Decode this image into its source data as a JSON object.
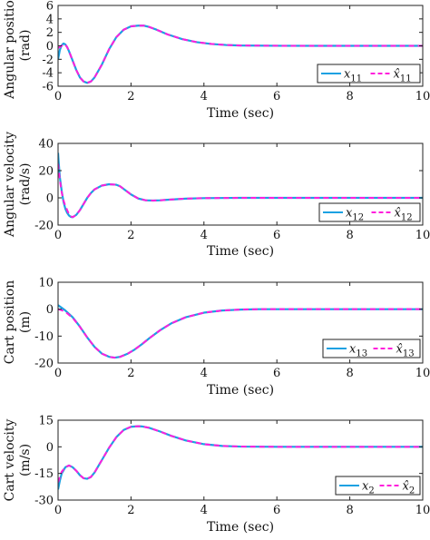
{
  "chart_data": [
    {
      "type": "line",
      "ylabel": [
        "Angular position",
        "(rad)"
      ],
      "xlabel": "Time (sec)",
      "xlim": [
        0,
        10
      ],
      "ylim": [
        -6,
        6
      ],
      "xticks": [
        "0",
        "2",
        "4",
        "6",
        "8",
        "10"
      ],
      "yticks": [
        "-6",
        "-4",
        "-2",
        "0",
        "2",
        "4",
        "6"
      ],
      "grid": false,
      "legend_position": "bottom-right",
      "series": [
        {
          "name": "x11",
          "legend": {
            "base": "x",
            "sub": "11",
            "hat": false
          },
          "color": "#1ba1e2",
          "style": "solid",
          "x": [
            0,
            0.05,
            0.1,
            0.15,
            0.2,
            0.25,
            0.3,
            0.4,
            0.5,
            0.6,
            0.7,
            0.8,
            0.9,
            1.0,
            1.2,
            1.4,
            1.6,
            1.8,
            2.0,
            2.2,
            2.35,
            2.5,
            2.7,
            3.0,
            3.4,
            3.8,
            4.2,
            4.6,
            5.0,
            6.0,
            7.0,
            8.0,
            9.0,
            10.0
          ],
          "y": [
            -2.0,
            -0.6,
            0.1,
            0.35,
            0.2,
            -0.2,
            -0.8,
            -2.2,
            -3.6,
            -4.7,
            -5.3,
            -5.5,
            -5.3,
            -4.7,
            -2.8,
            -0.5,
            1.3,
            2.4,
            2.9,
            3.0,
            3.0,
            2.8,
            2.4,
            1.7,
            1.0,
            0.55,
            0.28,
            0.13,
            0.05,
            0.01,
            0.0,
            0.0,
            0.0,
            0.0
          ]
        },
        {
          "name": "x̂11",
          "legend": {
            "base": "x",
            "sub": "11",
            "hat": true
          },
          "color": "#ff1fdc",
          "style": "dashed",
          "x": [
            0,
            0.05,
            0.1,
            0.15,
            0.2,
            0.25,
            0.3,
            0.4,
            0.5,
            0.6,
            0.7,
            0.8,
            0.9,
            1.0,
            1.2,
            1.4,
            1.6,
            1.8,
            2.0,
            2.2,
            2.35,
            2.5,
            2.7,
            3.0,
            3.4,
            3.8,
            4.2,
            4.6,
            5.0,
            6.0,
            7.0,
            8.0,
            9.0,
            10.0
          ],
          "y": [
            -0.3,
            -0.2,
            0.0,
            0.25,
            0.2,
            -0.2,
            -0.8,
            -2.2,
            -3.6,
            -4.7,
            -5.3,
            -5.5,
            -5.3,
            -4.7,
            -2.8,
            -0.5,
            1.3,
            2.4,
            2.9,
            3.0,
            3.0,
            2.8,
            2.4,
            1.7,
            1.0,
            0.55,
            0.28,
            0.13,
            0.05,
            0.01,
            0.0,
            0.0,
            0.0,
            0.0
          ]
        }
      ]
    },
    {
      "type": "line",
      "ylabel": [
        "Angular velocity",
        "(rad/s)"
      ],
      "xlabel": "Time (sec)",
      "xlim": [
        0,
        10
      ],
      "ylim": [
        -20,
        40
      ],
      "xticks": [
        "0",
        "2",
        "4",
        "6",
        "8",
        "10"
      ],
      "yticks": [
        "-20",
        "0",
        "20",
        "40"
      ],
      "grid": false,
      "legend_position": "bottom-right",
      "series": [
        {
          "name": "x12",
          "legend": {
            "base": "x",
            "sub": "12",
            "hat": false
          },
          "color": "#1ba1e2",
          "style": "solid",
          "x": [
            0,
            0.02,
            0.05,
            0.1,
            0.15,
            0.2,
            0.25,
            0.3,
            0.35,
            0.4,
            0.5,
            0.6,
            0.7,
            0.8,
            0.9,
            1.0,
            1.2,
            1.4,
            1.6,
            1.7,
            1.8,
            2.0,
            2.2,
            2.4,
            2.6,
            2.8,
            3.0,
            3.5,
            4.0,
            5.0,
            6.0,
            7.0,
            8.0,
            9.0,
            10.0
          ],
          "y": [
            33,
            25,
            15,
            5,
            -3,
            -8,
            -11,
            -13,
            -14,
            -14.2,
            -12.5,
            -9,
            -4.5,
            0,
            3.5,
            6.2,
            9,
            10,
            9.6,
            8.5,
            6.5,
            2.5,
            -0.5,
            -1.8,
            -2.0,
            -1.8,
            -1.4,
            -0.6,
            -0.2,
            0,
            0,
            0,
            0,
            0,
            0
          ]
        },
        {
          "name": "x̂12",
          "legend": {
            "base": "x",
            "sub": "12",
            "hat": true
          },
          "color": "#ff1fdc",
          "style": "dashed",
          "x": [
            0,
            0.02,
            0.05,
            0.1,
            0.15,
            0.2,
            0.25,
            0.3,
            0.35,
            0.4,
            0.5,
            0.6,
            0.7,
            0.8,
            0.9,
            1.0,
            1.2,
            1.4,
            1.6,
            1.7,
            1.8,
            2.0,
            2.2,
            2.4,
            2.6,
            2.8,
            3.0,
            3.5,
            4.0,
            5.0,
            6.0,
            7.0,
            8.0,
            9.0,
            10.0
          ],
          "y": [
            25,
            20,
            13,
            4,
            -2,
            -6,
            -9,
            -12,
            -13.5,
            -14.2,
            -12.5,
            -9,
            -4.5,
            0,
            3.5,
            6.2,
            9,
            10,
            9.6,
            8.5,
            6.5,
            2.5,
            -0.5,
            -1.8,
            -2.0,
            -1.8,
            -1.4,
            -0.6,
            -0.2,
            0,
            0,
            0,
            0,
            0,
            0
          ]
        }
      ]
    },
    {
      "type": "line",
      "ylabel": [
        "Cart position",
        "(m)"
      ],
      "xlabel": "Time (sec)",
      "xlim": [
        0,
        10
      ],
      "ylim": [
        -20,
        10
      ],
      "xticks": [
        "0",
        "2",
        "4",
        "6",
        "8",
        "10"
      ],
      "yticks": [
        "-20",
        "-10",
        "0",
        "10"
      ],
      "grid": false,
      "legend_position": "bottom-right",
      "series": [
        {
          "name": "x13",
          "legend": {
            "base": "x",
            "sub": "13",
            "hat": false
          },
          "color": "#1ba1e2",
          "style": "solid",
          "x": [
            0,
            0.1,
            0.2,
            0.4,
            0.6,
            0.8,
            1.0,
            1.2,
            1.4,
            1.55,
            1.7,
            1.9,
            2.1,
            2.3,
            2.5,
            2.8,
            3.1,
            3.5,
            4.0,
            4.5,
            5.0,
            5.5,
            6.0,
            7.0,
            8.0,
            9.0,
            10.0
          ],
          "y": [
            1.5,
            0.5,
            -0.5,
            -3.0,
            -6.5,
            -10.5,
            -14.0,
            -16.5,
            -17.7,
            -18.0,
            -17.7,
            -16.6,
            -15.0,
            -13.0,
            -10.8,
            -7.8,
            -5.3,
            -3.0,
            -1.3,
            -0.5,
            -0.15,
            0,
            0,
            0,
            0,
            0,
            0
          ]
        },
        {
          "name": "x̂13",
          "legend": {
            "base": "x",
            "sub": "13",
            "hat": true
          },
          "color": "#ff1fdc",
          "style": "dashed",
          "x": [
            0,
            0.1,
            0.2,
            0.4,
            0.6,
            0.8,
            1.0,
            1.2,
            1.4,
            1.55,
            1.7,
            1.9,
            2.1,
            2.3,
            2.5,
            2.8,
            3.1,
            3.5,
            4.0,
            4.5,
            5.0,
            5.5,
            6.0,
            7.0,
            8.0,
            9.0,
            10.0
          ],
          "y": [
            0.0,
            -0.4,
            -1.0,
            -3.2,
            -6.6,
            -10.5,
            -14.0,
            -16.5,
            -17.7,
            -18.0,
            -17.7,
            -16.6,
            -15.0,
            -13.0,
            -10.8,
            -7.8,
            -5.3,
            -3.0,
            -1.3,
            -0.5,
            -0.15,
            0,
            0,
            0,
            0,
            0,
            0
          ]
        }
      ]
    },
    {
      "type": "line",
      "ylabel": [
        "Cart velocity",
        "(m/s)"
      ],
      "xlabel": "Time (sec)",
      "xlim": [
        0,
        10
      ],
      "ylim": [
        -30,
        15
      ],
      "xticks": [
        "0",
        "2",
        "4",
        "6",
        "8",
        "10"
      ],
      "yticks": [
        "-30",
        "-15",
        "0",
        "15"
      ],
      "grid": false,
      "legend_position": "bottom-right",
      "series": [
        {
          "name": "x2",
          "legend": {
            "base": "x",
            "sub": "2",
            "hat": false
          },
          "color": "#1ba1e2",
          "style": "solid",
          "x": [
            0,
            0.05,
            0.1,
            0.2,
            0.3,
            0.4,
            0.5,
            0.6,
            0.7,
            0.8,
            0.9,
            1.0,
            1.2,
            1.4,
            1.6,
            1.8,
            2.0,
            2.2,
            2.3,
            2.5,
            2.8,
            3.1,
            3.5,
            4.0,
            4.5,
            5.0,
            6.0,
            7.0,
            8.0,
            9.0,
            10.0
          ],
          "y": [
            -24,
            -19,
            -15,
            -11.5,
            -10.5,
            -11.5,
            -13.5,
            -16,
            -17.7,
            -18,
            -17,
            -14.5,
            -7.5,
            -0.5,
            5.5,
            9.5,
            11.3,
            11.6,
            11.5,
            10.7,
            8.6,
            6.2,
            3.6,
            1.5,
            0.5,
            0.15,
            0,
            0,
            0,
            0,
            0
          ]
        },
        {
          "name": "x̂2",
          "legend": {
            "base": "x",
            "sub": "2",
            "hat": true
          },
          "color": "#ff1fdc",
          "style": "dashed",
          "x": [
            0,
            0.05,
            0.1,
            0.2,
            0.3,
            0.4,
            0.5,
            0.6,
            0.7,
            0.8,
            0.9,
            1.0,
            1.2,
            1.4,
            1.6,
            1.8,
            2.0,
            2.2,
            2.3,
            2.5,
            2.8,
            3.1,
            3.5,
            4.0,
            4.5,
            5.0,
            6.0,
            7.0,
            8.0,
            9.0,
            10.0
          ],
          "y": [
            -20,
            -17,
            -14,
            -11.5,
            -10.5,
            -11.5,
            -13.5,
            -16,
            -17.7,
            -18,
            -17,
            -14.5,
            -7.5,
            -0.5,
            5.5,
            9.5,
            11.3,
            11.6,
            11.5,
            10.7,
            8.6,
            6.2,
            3.6,
            1.5,
            0.5,
            0.15,
            0,
            0,
            0,
            0,
            0
          ]
        }
      ]
    }
  ]
}
